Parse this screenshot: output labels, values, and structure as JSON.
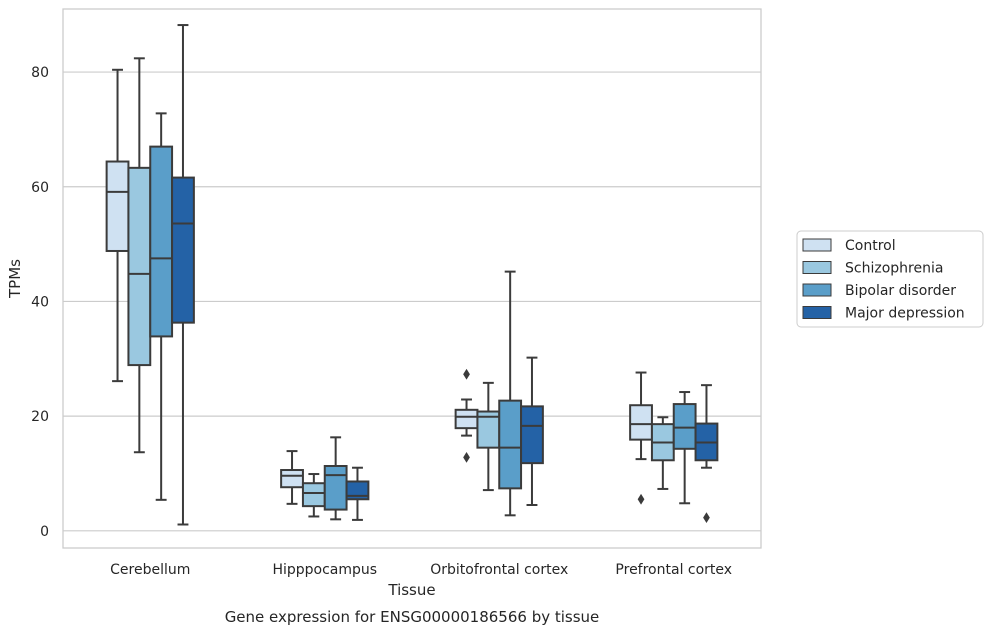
{
  "chart_data": {
    "type": "box",
    "xlabel": "Tissue",
    "ylabel": "TPMs",
    "caption": "Gene expression for ENSG00000186566 by tissue",
    "ylim": [
      -3,
      91
    ],
    "yticks": [
      0,
      20,
      40,
      60,
      80
    ],
    "grid": true,
    "legend_position": "right",
    "categories": [
      "Cerebellum",
      "Hipppocampus",
      "Orbitofrontal cortex",
      "Prefrontal cortex"
    ],
    "series": [
      {
        "name": "Control",
        "color": "#cfe1f2",
        "boxes": [
          {
            "whislo": 26.1,
            "q1": 48.8,
            "med": 59.1,
            "q3": 64.4,
            "whishi": 80.4,
            "fliers": []
          },
          {
            "whislo": 4.7,
            "q1": 7.6,
            "med": 9.6,
            "q3": 10.6,
            "whishi": 13.9,
            "fliers": []
          },
          {
            "whislo": 16.6,
            "q1": 17.9,
            "med": 19.9,
            "q3": 21.1,
            "whishi": 22.9,
            "fliers": [
              27.3,
              12.8
            ]
          },
          {
            "whislo": 12.5,
            "q1": 15.9,
            "med": 18.6,
            "q3": 21.9,
            "whishi": 27.6,
            "fliers": [
              5.5
            ]
          }
        ]
      },
      {
        "name": "Schizophrenia",
        "color": "#9ac8e0",
        "boxes": [
          {
            "whislo": 13.7,
            "q1": 28.9,
            "med": 44.8,
            "q3": 63.3,
            "whishi": 82.4,
            "fliers": []
          },
          {
            "whislo": 2.5,
            "q1": 4.3,
            "med": 6.6,
            "q3": 8.3,
            "whishi": 9.9,
            "fliers": []
          },
          {
            "whislo": 7.1,
            "q1": 14.5,
            "med": 19.9,
            "q3": 20.8,
            "whishi": 25.8,
            "fliers": []
          },
          {
            "whislo": 7.3,
            "q1": 12.3,
            "med": 15.4,
            "q3": 18.6,
            "whishi": 19.8,
            "fliers": []
          }
        ]
      },
      {
        "name": "Bipolar disorder",
        "color": "#5a9ec9",
        "boxes": [
          {
            "whislo": 5.4,
            "q1": 33.9,
            "med": 47.5,
            "q3": 67.0,
            "whishi": 72.8,
            "fliers": []
          },
          {
            "whislo": 2.0,
            "q1": 3.7,
            "med": 9.7,
            "q3": 11.3,
            "whishi": 16.3,
            "fliers": []
          },
          {
            "whislo": 2.7,
            "q1": 7.4,
            "med": 14.5,
            "q3": 22.7,
            "whishi": 45.2,
            "fliers": []
          },
          {
            "whislo": 4.8,
            "q1": 14.3,
            "med": 18.0,
            "q3": 22.1,
            "whishi": 24.2,
            "fliers": []
          }
        ]
      },
      {
        "name": "Major depression",
        "color": "#2462a6",
        "boxes": [
          {
            "whislo": 1.1,
            "q1": 36.3,
            "med": 53.6,
            "q3": 61.6,
            "whishi": 88.2,
            "fliers": []
          },
          {
            "whislo": 1.9,
            "q1": 5.5,
            "med": 6.1,
            "q3": 8.6,
            "whishi": 11.0,
            "fliers": []
          },
          {
            "whislo": 4.5,
            "q1": 11.8,
            "med": 18.3,
            "q3": 21.7,
            "whishi": 30.2,
            "fliers": []
          },
          {
            "whislo": 11.0,
            "q1": 12.3,
            "med": 15.4,
            "q3": 18.7,
            "whishi": 25.4,
            "fliers": [
              2.3
            ]
          }
        ]
      }
    ]
  }
}
